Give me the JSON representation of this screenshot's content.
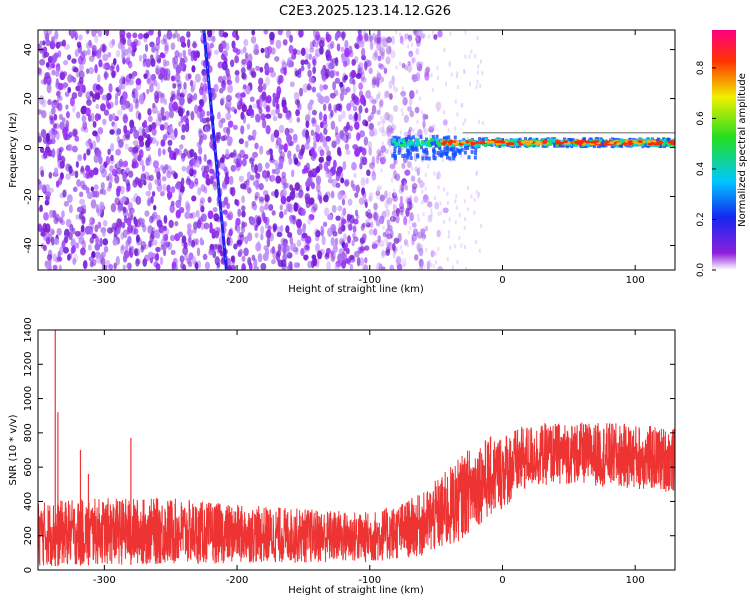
{
  "title": "C2E3.2025.123.14.12.G26",
  "chart_data": [
    {
      "type": "heatmap",
      "xlabel": "Height of straight line (km)",
      "ylabel": "Frequency (Hz)",
      "xlim": [
        -350,
        130
      ],
      "ylim": [
        -50,
        48
      ],
      "xticks": [
        -300,
        -200,
        -100,
        0,
        100
      ],
      "yticks": [
        -40,
        -20,
        0,
        20,
        40
      ],
      "colorbar": {
        "label": "Normalized spectral amplitude",
        "range": [
          0,
          0.95
        ],
        "ticks": [
          0.0,
          0.2,
          0.4,
          0.6,
          0.8
        ],
        "colormap": "rainbow (purple-blue-cyan-green-yellow-red-magenta)"
      },
      "features": {
        "diagonal_streak": {
          "from": [
            -225,
            48
          ],
          "to": [
            -208,
            -50
          ]
        },
        "signal_band_frequency": 2,
        "signal_band_start_km": -85,
        "noise_region_end_km": -80
      }
    },
    {
      "type": "line",
      "xlabel": "Height of straight line (km)",
      "ylabel": "SNR (10 * v/v)",
      "xlim": [
        -350,
        130
      ],
      "ylim": [
        0,
        1400
      ],
      "xticks": [
        -300,
        -200,
        -100,
        0,
        100
      ],
      "yticks": [
        0,
        200,
        400,
        600,
        800,
        1000,
        1200,
        1400
      ],
      "color": "#ee3333",
      "envelope": {
        "x": [
          -350,
          -300,
          -250,
          -200,
          -150,
          -100,
          -80,
          -60,
          -40,
          -20,
          0,
          20,
          40,
          60,
          80,
          100,
          130
        ],
        "lower": [
          20,
          30,
          30,
          40,
          40,
          40,
          60,
          80,
          120,
          250,
          350,
          480,
          500,
          500,
          480,
          470,
          450
        ],
        "upper": [
          400,
          420,
          420,
          380,
          360,
          340,
          380,
          450,
          600,
          750,
          800,
          850,
          860,
          860,
          860,
          850,
          830
        ]
      },
      "spikes": [
        {
          "x": -337,
          "y": 1440
        },
        {
          "x": -335,
          "y": 920
        },
        {
          "x": -318,
          "y": 700
        },
        {
          "x": -312,
          "y": 560
        },
        {
          "x": -280,
          "y": 770
        }
      ]
    }
  ]
}
